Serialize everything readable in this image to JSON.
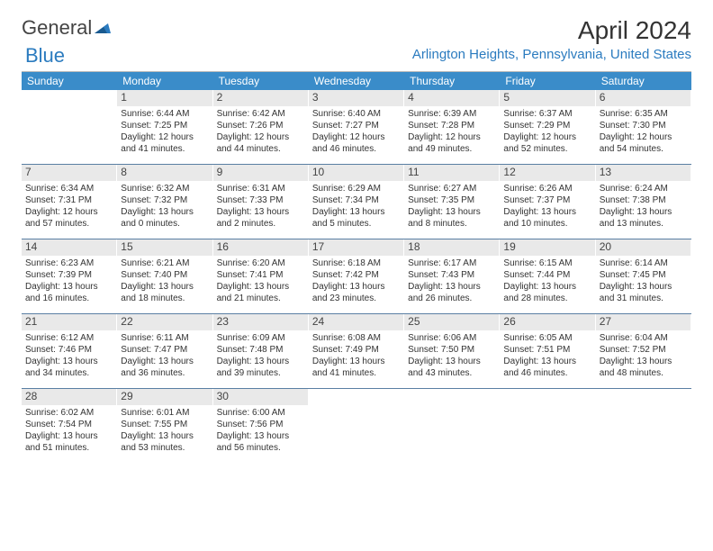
{
  "logo": {
    "text1": "General",
    "text2": "Blue"
  },
  "title": "April 2024",
  "subtitle": "Arlington Heights, Pennsylvania, United States",
  "colors": {
    "header_bg": "#3a8cc9",
    "accent": "#2b7bbf",
    "daynum_bg": "#e9e9e9",
    "row_sep": "#5a7fa3"
  },
  "day_headers": [
    "Sunday",
    "Monday",
    "Tuesday",
    "Wednesday",
    "Thursday",
    "Friday",
    "Saturday"
  ],
  "weeks": [
    [
      {
        "n": "",
        "blank": true
      },
      {
        "n": "1",
        "sunrise": "6:44 AM",
        "sunset": "7:25 PM",
        "daylight": "12 hours and 41 minutes."
      },
      {
        "n": "2",
        "sunrise": "6:42 AM",
        "sunset": "7:26 PM",
        "daylight": "12 hours and 44 minutes."
      },
      {
        "n": "3",
        "sunrise": "6:40 AM",
        "sunset": "7:27 PM",
        "daylight": "12 hours and 46 minutes."
      },
      {
        "n": "4",
        "sunrise": "6:39 AM",
        "sunset": "7:28 PM",
        "daylight": "12 hours and 49 minutes."
      },
      {
        "n": "5",
        "sunrise": "6:37 AM",
        "sunset": "7:29 PM",
        "daylight": "12 hours and 52 minutes."
      },
      {
        "n": "6",
        "sunrise": "6:35 AM",
        "sunset": "7:30 PM",
        "daylight": "12 hours and 54 minutes."
      }
    ],
    [
      {
        "n": "7",
        "sunrise": "6:34 AM",
        "sunset": "7:31 PM",
        "daylight": "12 hours and 57 minutes."
      },
      {
        "n": "8",
        "sunrise": "6:32 AM",
        "sunset": "7:32 PM",
        "daylight": "13 hours and 0 minutes."
      },
      {
        "n": "9",
        "sunrise": "6:31 AM",
        "sunset": "7:33 PM",
        "daylight": "13 hours and 2 minutes."
      },
      {
        "n": "10",
        "sunrise": "6:29 AM",
        "sunset": "7:34 PM",
        "daylight": "13 hours and 5 minutes."
      },
      {
        "n": "11",
        "sunrise": "6:27 AM",
        "sunset": "7:35 PM",
        "daylight": "13 hours and 8 minutes."
      },
      {
        "n": "12",
        "sunrise": "6:26 AM",
        "sunset": "7:37 PM",
        "daylight": "13 hours and 10 minutes."
      },
      {
        "n": "13",
        "sunrise": "6:24 AM",
        "sunset": "7:38 PM",
        "daylight": "13 hours and 13 minutes."
      }
    ],
    [
      {
        "n": "14",
        "sunrise": "6:23 AM",
        "sunset": "7:39 PM",
        "daylight": "13 hours and 16 minutes."
      },
      {
        "n": "15",
        "sunrise": "6:21 AM",
        "sunset": "7:40 PM",
        "daylight": "13 hours and 18 minutes."
      },
      {
        "n": "16",
        "sunrise": "6:20 AM",
        "sunset": "7:41 PM",
        "daylight": "13 hours and 21 minutes."
      },
      {
        "n": "17",
        "sunrise": "6:18 AM",
        "sunset": "7:42 PM",
        "daylight": "13 hours and 23 minutes."
      },
      {
        "n": "18",
        "sunrise": "6:17 AM",
        "sunset": "7:43 PM",
        "daylight": "13 hours and 26 minutes."
      },
      {
        "n": "19",
        "sunrise": "6:15 AM",
        "sunset": "7:44 PM",
        "daylight": "13 hours and 28 minutes."
      },
      {
        "n": "20",
        "sunrise": "6:14 AM",
        "sunset": "7:45 PM",
        "daylight": "13 hours and 31 minutes."
      }
    ],
    [
      {
        "n": "21",
        "sunrise": "6:12 AM",
        "sunset": "7:46 PM",
        "daylight": "13 hours and 34 minutes."
      },
      {
        "n": "22",
        "sunrise": "6:11 AM",
        "sunset": "7:47 PM",
        "daylight": "13 hours and 36 minutes."
      },
      {
        "n": "23",
        "sunrise": "6:09 AM",
        "sunset": "7:48 PM",
        "daylight": "13 hours and 39 minutes."
      },
      {
        "n": "24",
        "sunrise": "6:08 AM",
        "sunset": "7:49 PM",
        "daylight": "13 hours and 41 minutes."
      },
      {
        "n": "25",
        "sunrise": "6:06 AM",
        "sunset": "7:50 PM",
        "daylight": "13 hours and 43 minutes."
      },
      {
        "n": "26",
        "sunrise": "6:05 AM",
        "sunset": "7:51 PM",
        "daylight": "13 hours and 46 minutes."
      },
      {
        "n": "27",
        "sunrise": "6:04 AM",
        "sunset": "7:52 PM",
        "daylight": "13 hours and 48 minutes."
      }
    ],
    [
      {
        "n": "28",
        "sunrise": "6:02 AM",
        "sunset": "7:54 PM",
        "daylight": "13 hours and 51 minutes."
      },
      {
        "n": "29",
        "sunrise": "6:01 AM",
        "sunset": "7:55 PM",
        "daylight": "13 hours and 53 minutes."
      },
      {
        "n": "30",
        "sunrise": "6:00 AM",
        "sunset": "7:56 PM",
        "daylight": "13 hours and 56 minutes."
      },
      {
        "n": "",
        "blank": true
      },
      {
        "n": "",
        "blank": true
      },
      {
        "n": "",
        "blank": true
      },
      {
        "n": "",
        "blank": true
      }
    ]
  ]
}
